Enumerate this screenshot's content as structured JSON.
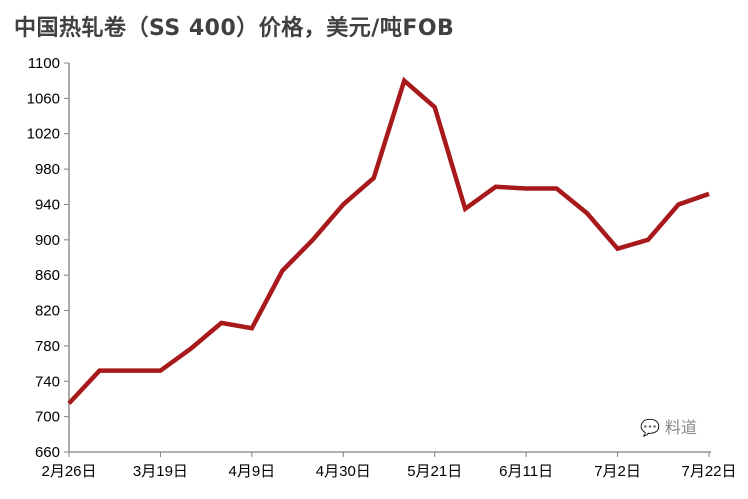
{
  "chart_data": {
    "type": "line",
    "title": "中国热轧卷（SS 400）价格，美元/吨FOB",
    "xlabel": "",
    "ylabel": "",
    "x": [
      "2月26日",
      "3月5日",
      "3月12日",
      "3月19日",
      "3月26日",
      "4月2日",
      "4月9日",
      "4月16日",
      "4月23日",
      "4月30日",
      "5月7日",
      "5月14日",
      "5月21日",
      "5月28日",
      "6月4日",
      "6月11日",
      "6月18日",
      "6月25日",
      "7月2日",
      "7月9日",
      "7月16日",
      "7月22日"
    ],
    "x_tick_labels": [
      "2月26日",
      "3月19日",
      "4月9日",
      "4月30日",
      "5月21日",
      "6月11日",
      "7月2日",
      "7月22日"
    ],
    "series": [
      {
        "values": [
          715,
          752,
          752,
          752,
          777,
          806,
          800,
          865,
          900,
          940,
          970,
          1080,
          1050,
          935,
          960,
          958,
          958,
          930,
          890,
          900,
          940,
          952
        ],
        "color": "#A8191C"
      }
    ],
    "ylim": [
      660,
      1100
    ],
    "y_ticks": [
      660,
      700,
      740,
      780,
      820,
      860,
      900,
      940,
      980,
      1020,
      1060,
      1100
    ],
    "grid": false,
    "legend": "none"
  },
  "watermark": {
    "text": "料道",
    "icon": "wechat-icon"
  }
}
